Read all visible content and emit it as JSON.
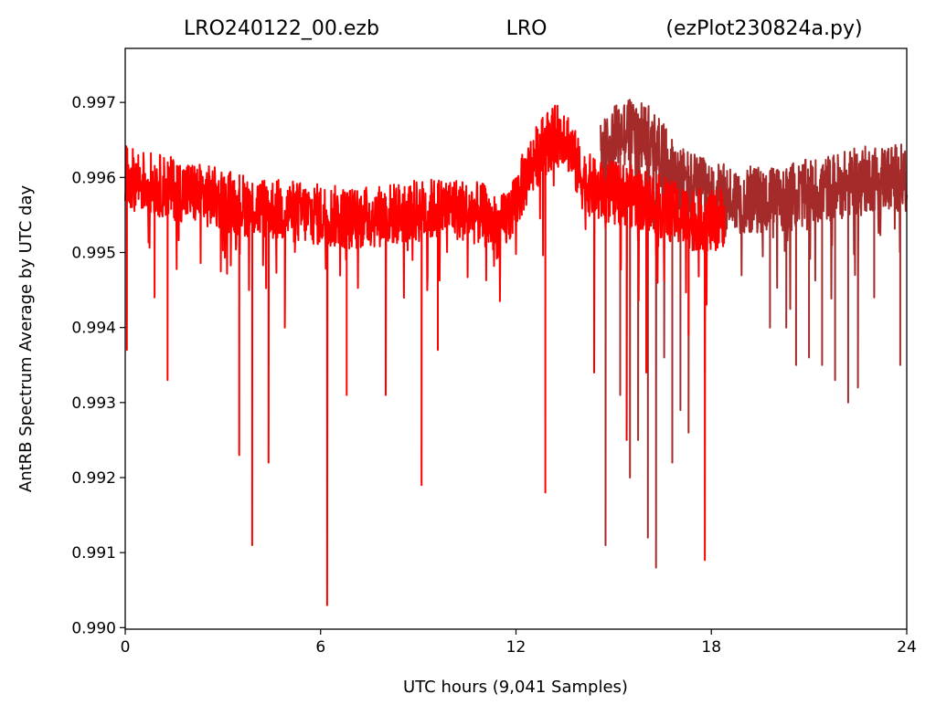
{
  "chart_data": {
    "type": "line",
    "title_left": "LRO240122_00.ezb",
    "title_center": "LRO",
    "title_right": "(ezPlot230824a.py)",
    "xlabel": "UTC hours  (9,041 Samples)",
    "ylabel": "AntRB Spectrum Average by UTC day",
    "xlim": [
      0,
      24
    ],
    "ylim": [
      0.98998,
      0.99772
    ],
    "x_ticks": [
      0,
      6,
      12,
      18,
      24
    ],
    "x_tick_labels": [
      "0",
      "6",
      "12",
      "18",
      "24"
    ],
    "y_ticks": [
      0.99,
      0.991,
      0.992,
      0.993,
      0.994,
      0.995,
      0.996,
      0.997
    ],
    "y_tick_labels": [
      "0.990",
      "0.991",
      "0.992",
      "0.993",
      "0.994",
      "0.995",
      "0.996",
      "0.997"
    ],
    "grid": false,
    "series": [
      {
        "color": "#a52a2a",
        "x_start": 14.6,
        "x_end": 24,
        "baseline": [
          [
            14.6,
            0.9963
          ],
          [
            15.0,
            0.9965
          ],
          [
            15.5,
            0.99665
          ],
          [
            16.0,
            0.99655
          ],
          [
            16.5,
            0.9963
          ],
          [
            17.0,
            0.996
          ],
          [
            18.0,
            0.99575
          ],
          [
            19.0,
            0.9957
          ],
          [
            20.0,
            0.9957
          ],
          [
            21.0,
            0.9958
          ],
          [
            22.0,
            0.9959
          ],
          [
            23.0,
            0.996
          ],
          [
            24.0,
            0.996
          ]
        ],
        "noise": 0.00045,
        "spikes": [
          [
            14.75,
            0.9911
          ],
          [
            15.2,
            0.9931
          ],
          [
            15.5,
            0.992
          ],
          [
            15.75,
            0.9925
          ],
          [
            16.05,
            0.9912
          ],
          [
            16.3,
            0.9908
          ],
          [
            16.55,
            0.9936
          ],
          [
            16.8,
            0.9922
          ],
          [
            17.05,
            0.9929
          ],
          [
            17.3,
            0.9926
          ],
          [
            17.8,
            0.9934
          ],
          [
            19.8,
            0.994
          ],
          [
            20.3,
            0.994
          ],
          [
            20.6,
            0.9935
          ],
          [
            21.0,
            0.9936
          ],
          [
            21.4,
            0.9935
          ],
          [
            21.8,
            0.9933
          ],
          [
            22.2,
            0.993
          ],
          [
            22.5,
            0.9932
          ],
          [
            23.0,
            0.9944
          ],
          [
            23.8,
            0.9935
          ]
        ]
      },
      {
        "color": "#ff0000",
        "x_start": 0,
        "x_end": 18.4,
        "baseline": [
          [
            0.0,
            0.996
          ],
          [
            1.0,
            0.9959
          ],
          [
            2.0,
            0.9958
          ],
          [
            3.0,
            0.9957
          ],
          [
            4.0,
            0.9956
          ],
          [
            5.0,
            0.99555
          ],
          [
            6.0,
            0.9955
          ],
          [
            7.0,
            0.99545
          ],
          [
            8.0,
            0.9955
          ],
          [
            9.0,
            0.99555
          ],
          [
            10.0,
            0.9956
          ],
          [
            11.0,
            0.9955
          ],
          [
            11.5,
            0.9953
          ],
          [
            12.0,
            0.9957
          ],
          [
            12.5,
            0.9962
          ],
          [
            13.0,
            0.9965
          ],
          [
            13.5,
            0.9966
          ],
          [
            14.0,
            0.996
          ],
          [
            14.5,
            0.9958
          ],
          [
            15.0,
            0.9958
          ],
          [
            16.0,
            0.9957
          ],
          [
            17.0,
            0.9955
          ],
          [
            18.0,
            0.9954
          ],
          [
            18.4,
            0.9955
          ]
        ],
        "noise": 0.00042,
        "spikes": [
          [
            0.05,
            0.9937
          ],
          [
            0.9,
            0.9944
          ],
          [
            1.3,
            0.9933
          ],
          [
            3.5,
            0.9923
          ],
          [
            3.9,
            0.9911
          ],
          [
            4.4,
            0.9922
          ],
          [
            4.9,
            0.994
          ],
          [
            6.2,
            0.9903
          ],
          [
            6.8,
            0.9931
          ],
          [
            8.0,
            0.9931
          ],
          [
            9.1,
            0.9919
          ],
          [
            9.6,
            0.9937
          ],
          [
            12.9,
            0.9918
          ],
          [
            14.4,
            0.9934
          ],
          [
            15.4,
            0.9925
          ],
          [
            16.0,
            0.9934
          ],
          [
            17.3,
            0.9939
          ],
          [
            17.8,
            0.9909
          ]
        ]
      }
    ]
  }
}
